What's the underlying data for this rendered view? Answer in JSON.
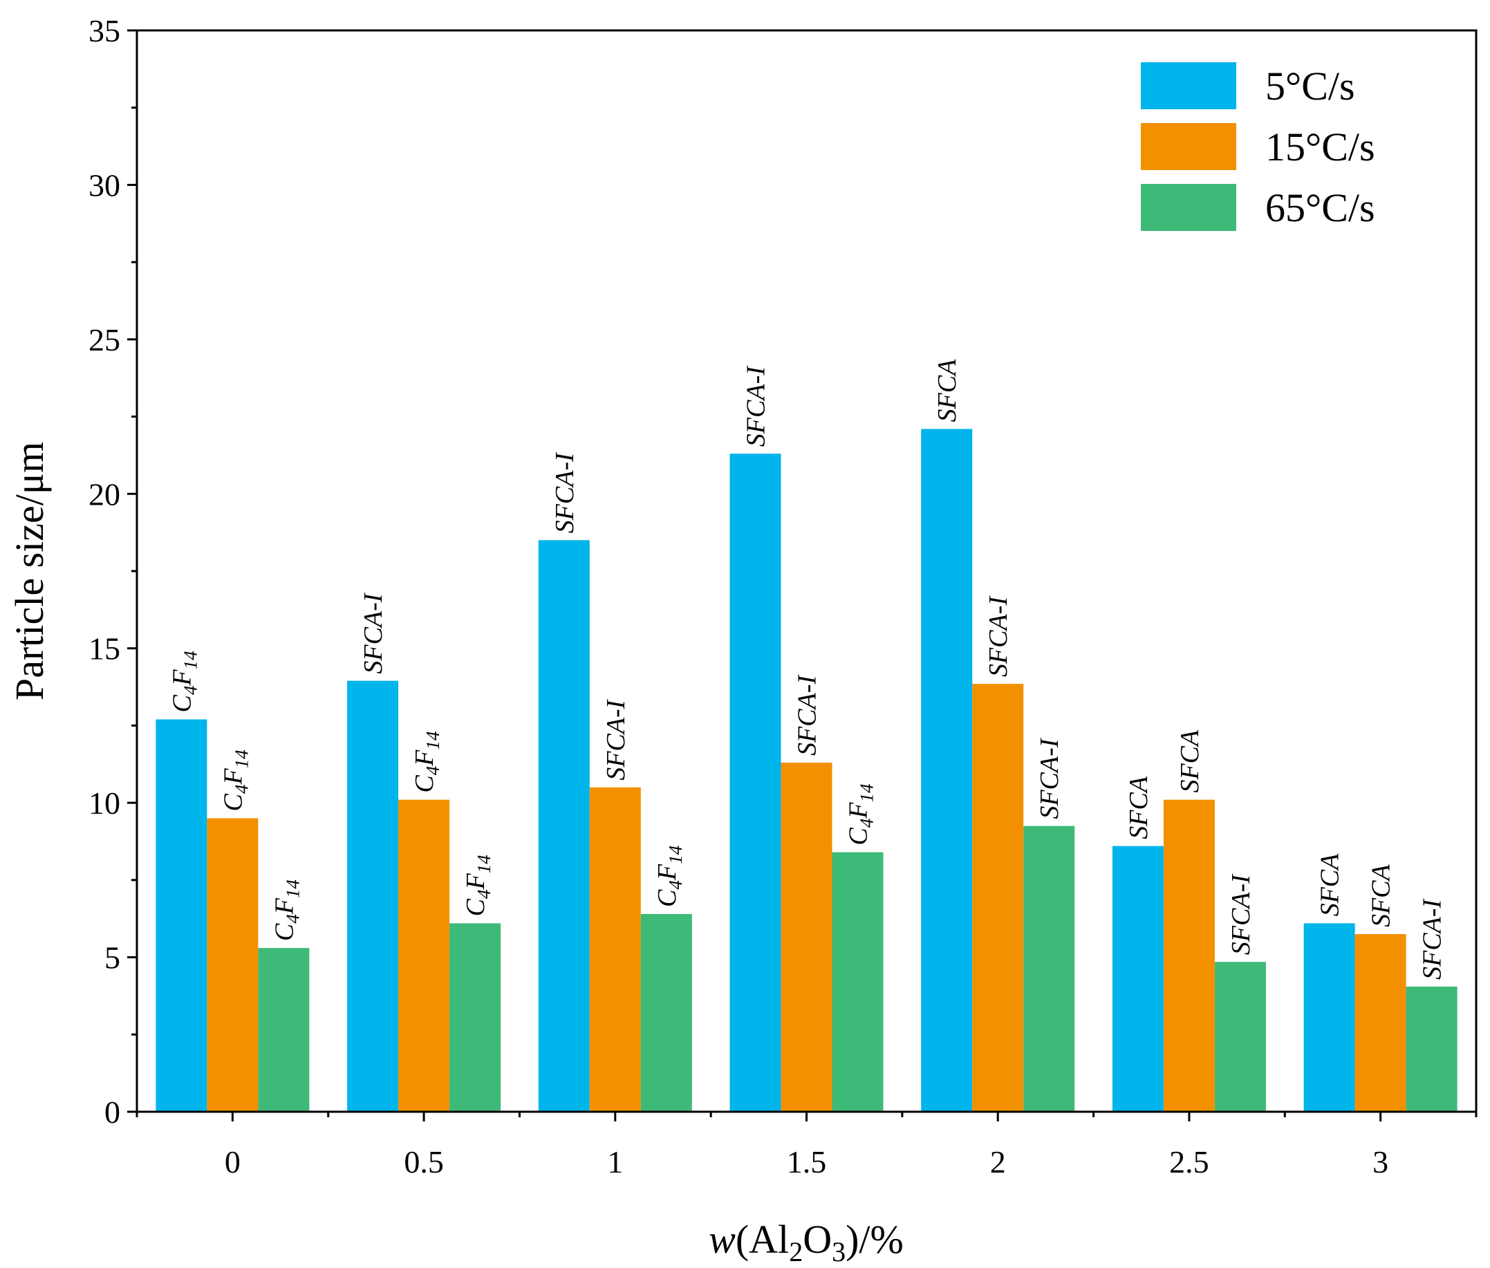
{
  "chart_data": {
    "type": "bar",
    "categories": [
      "0",
      "0.5",
      "1",
      "1.5",
      "2",
      "2.5",
      "3"
    ],
    "series": [
      {
        "name": "5°C/s",
        "color": "#00b4ec",
        "values": [
          12.7,
          13.95,
          18.5,
          21.3,
          22.1,
          8.6,
          6.1
        ],
        "labels": [
          "C4F14",
          "SFCA-I",
          "SFCA-I",
          "SFCA-I",
          "SFCA",
          "SFCA",
          "SFCA"
        ]
      },
      {
        "name": "15°C/s",
        "color": "#f39000",
        "values": [
          9.5,
          10.1,
          10.5,
          11.3,
          13.85,
          10.1,
          5.75
        ],
        "labels": [
          "C4F14",
          "C4F14",
          "SFCA-I",
          "SFCA-I",
          "SFCA-I",
          "SFCA",
          "SFCA"
        ]
      },
      {
        "name": "65°C/s",
        "color": "#3dba78",
        "values": [
          5.3,
          6.1,
          6.4,
          8.4,
          9.25,
          4.85,
          4.05
        ],
        "labels": [
          "C4F14",
          "C4F14",
          "C4F14",
          "C4F14",
          "SFCA-I",
          "SFCA-I",
          "SFCA-I"
        ]
      }
    ],
    "title": "",
    "xlabel": "w(Al2O3)/%",
    "ylabel": "Particle size/μm",
    "ylim": [
      0,
      35
    ],
    "yticks": [
      "0",
      "5",
      "10",
      "15",
      "20",
      "25",
      "30",
      "35"
    ],
    "grid": false,
    "legend_position": "top-right"
  }
}
